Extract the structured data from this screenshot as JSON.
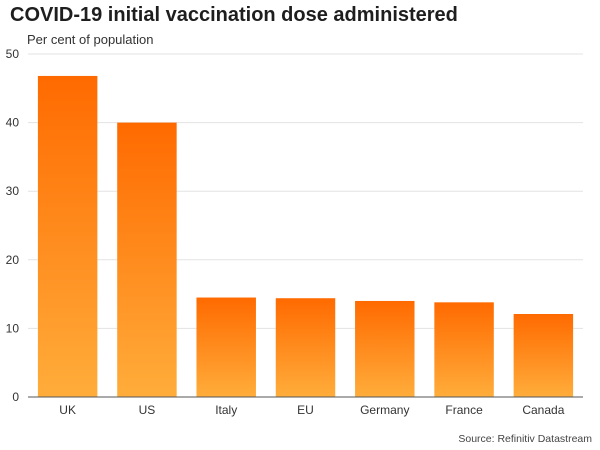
{
  "header": {
    "title": "COVID-19 initial vaccination dose administered",
    "subtitle": "Per cent of population"
  },
  "footer": {
    "source": "Source: Refinitiv Datastream"
  },
  "chart_data": {
    "type": "bar",
    "title": "COVID-19 initial vaccination dose administered",
    "subtitle": "Per cent of population",
    "xlabel": "",
    "ylabel": "Per cent of population",
    "categories": [
      "UK",
      "US",
      "Italy",
      "EU",
      "Germany",
      "France",
      "Canada"
    ],
    "values": [
      46.8,
      40.0,
      14.5,
      14.4,
      14.0,
      13.8,
      12.1
    ],
    "ylim": [
      0,
      50
    ],
    "yticks": [
      0,
      10,
      20,
      30,
      40,
      50
    ],
    "grid": "horizontal",
    "legend": "none",
    "colors": {
      "bar_top": "#ff6a00",
      "bar_bottom": "#ffad3b"
    }
  }
}
